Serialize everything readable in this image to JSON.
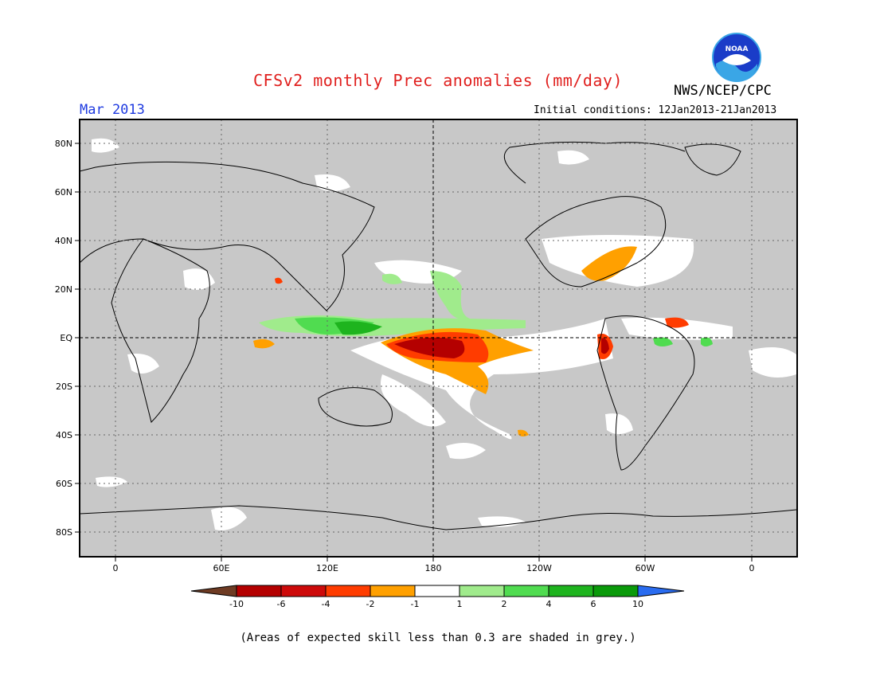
{
  "header": {
    "title": "CFSv2 monthly Prec anomalies (mm/day)",
    "org": "NWS/NCEP/CPC",
    "logo_text": "NOAA",
    "period": "Mar 2013",
    "initial_conditions": "Initial conditions: 12Jan2013-21Jan2013"
  },
  "axes": {
    "x_ticks": [
      "0",
      "60E",
      "120E",
      "180",
      "120W",
      "60W",
      "0"
    ],
    "y_ticks": [
      "80N",
      "60N",
      "40N",
      "20N",
      "EQ",
      "20S",
      "40S",
      "60S",
      "80S"
    ]
  },
  "legend": {
    "labels": [
      "-10",
      "-6",
      "-4",
      "-2",
      "-1",
      "1",
      "2",
      "4",
      "6",
      "10"
    ],
    "colors": [
      "#6e3b23",
      "#b40000",
      "#cd0a0a",
      "#ff3c00",
      "#ffa000",
      "#ffffff",
      "#a0eb8c",
      "#50dc50",
      "#1eb41e",
      "#0a9a0a",
      "#2a6cf0"
    ]
  },
  "colors": {
    "grey_mask": "#c8c8c8",
    "title": "#e0201e",
    "period": "#1e3ae0"
  },
  "footnote": "(Areas of expected skill less than 0.3 are shaded in grey.)"
}
